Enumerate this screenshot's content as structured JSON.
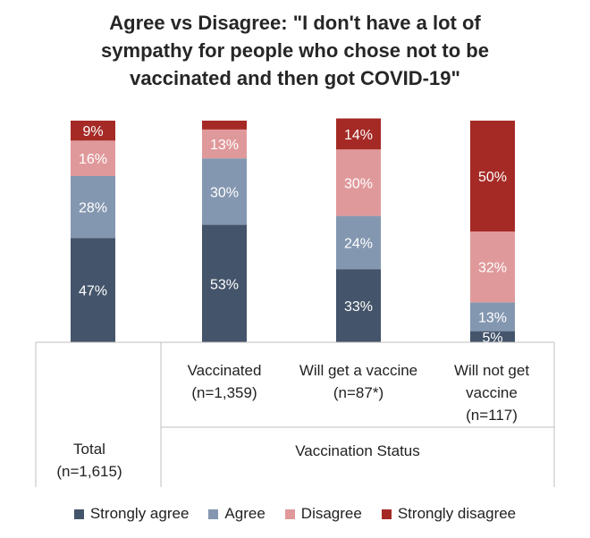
{
  "title_lines": [
    "Agree vs Disagree: \"I don't have a lot of",
    "sympathy for people who chose not to be",
    "vaccinated and then got COVID-19\""
  ],
  "colors": {
    "strongly_agree": "#44546a",
    "agree": "#8497b0",
    "disagree": "#e0999b",
    "strongly_disagree": "#a52a26"
  },
  "chart_data": {
    "type": "bar",
    "stacked": true,
    "ylim": [
      0,
      100
    ],
    "categories": [
      [
        "Total",
        "(n=1,615)"
      ],
      [
        "Vaccinated",
        "(n=1,359)"
      ],
      [
        "Will get a vaccine",
        "(n=87*)"
      ],
      [
        "Will not get",
        "vaccine",
        "(n=117)"
      ]
    ],
    "group_label": "Vaccination Status",
    "series": [
      {
        "name": "Strongly agree",
        "color_key": "strongly_agree",
        "values": [
          47,
          53,
          33,
          5
        ],
        "labels": [
          "47%",
          "53%",
          "33%",
          "5%"
        ]
      },
      {
        "name": "Agree",
        "color_key": "agree",
        "values": [
          28,
          30,
          24,
          13
        ],
        "labels": [
          "28%",
          "30%",
          "24%",
          "13%"
        ]
      },
      {
        "name": "Disagree",
        "color_key": "disagree",
        "values": [
          16,
          13,
          30,
          32
        ],
        "labels": [
          "16%",
          "13%",
          "30%",
          "32%"
        ]
      },
      {
        "name": "Strongly disagree",
        "color_key": "strongly_disagree",
        "values": [
          9,
          4,
          14,
          50
        ],
        "labels": [
          "9%",
          "",
          "14%",
          "50%"
        ]
      }
    ],
    "legend_position": "bottom"
  }
}
